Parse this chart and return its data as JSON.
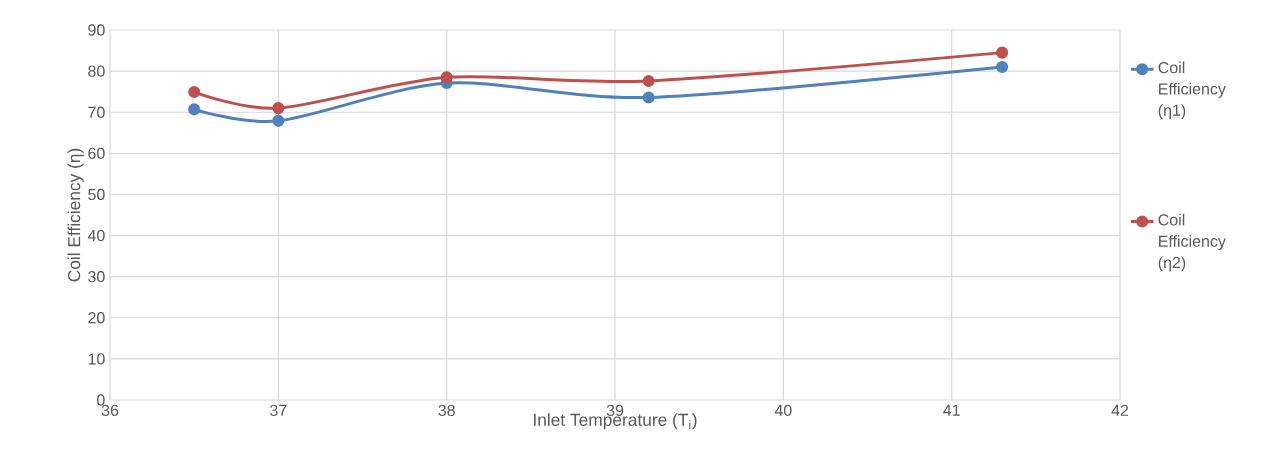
{
  "chart_data": {
    "type": "line",
    "xlabel": "Inlet Temperature (T$_{i}$)",
    "ylabel": "Coil Efficiency (η)",
    "x": [
      36.5,
      37,
      38,
      39.2,
      41.3
    ],
    "series": [
      {
        "name": "Coil Efficiency (η1)",
        "color": "#4f81bd",
        "values": [
          70.7,
          67.9,
          77.1,
          73.6,
          81.0
        ]
      },
      {
        "name": "Coil Efficiency (η2)",
        "color": "#c0504d",
        "values": [
          74.9,
          71.0,
          78.5,
          77.6,
          84.5
        ]
      }
    ],
    "xlim": [
      36,
      42
    ],
    "xticks": [
      36,
      37,
      38,
      39,
      40,
      41,
      42
    ],
    "ylim": [
      0,
      90
    ],
    "yticks": [
      0,
      10,
      20,
      30,
      40,
      50,
      60,
      70,
      80,
      90
    ],
    "grid": true,
    "legend": "right",
    "marker": "circle",
    "line_style": "solid"
  }
}
